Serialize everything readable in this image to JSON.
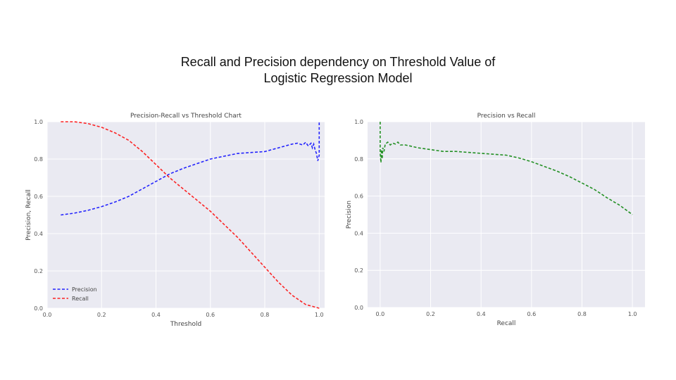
{
  "slide": {
    "title_line1": "Recall and Precision dependency on Threshold Value of",
    "title_line2": "Logistic Regression Model"
  },
  "chart_data": [
    {
      "type": "line",
      "title": "Precision-Recall vs Threshold Chart",
      "xlabel": "Threshold",
      "ylabel": "Precision, Recall",
      "xlim": [
        0.0,
        1.02
      ],
      "ylim": [
        0.0,
        1.0
      ],
      "xticks": [
        "0.0",
        "0.2",
        "0.4",
        "0.6",
        "0.8",
        "1.0"
      ],
      "yticks": [
        "0.0",
        "0.2",
        "0.4",
        "0.6",
        "0.8",
        "1.0"
      ],
      "grid": true,
      "legend": "lower-left",
      "series": [
        {
          "name": "Precision",
          "color": "#0000ff",
          "style": "dashed",
          "x": [
            0.05,
            0.1,
            0.15,
            0.2,
            0.25,
            0.3,
            0.35,
            0.4,
            0.45,
            0.5,
            0.55,
            0.6,
            0.65,
            0.7,
            0.75,
            0.8,
            0.85,
            0.9,
            0.92,
            0.94,
            0.95,
            0.96,
            0.97,
            0.975,
            0.98,
            0.985,
            0.99,
            0.995,
            1.0,
            1.0
          ],
          "y": [
            0.5,
            0.51,
            0.525,
            0.545,
            0.57,
            0.6,
            0.64,
            0.68,
            0.72,
            0.75,
            0.775,
            0.8,
            0.815,
            0.83,
            0.835,
            0.84,
            0.86,
            0.88,
            0.885,
            0.875,
            0.89,
            0.87,
            0.885,
            0.86,
            0.88,
            0.85,
            0.83,
            0.79,
            0.82,
            1.0
          ]
        },
        {
          "name": "Recall",
          "color": "#ff0000",
          "style": "dashed",
          "x": [
            0.05,
            0.1,
            0.15,
            0.2,
            0.25,
            0.3,
            0.35,
            0.4,
            0.45,
            0.5,
            0.55,
            0.6,
            0.65,
            0.7,
            0.75,
            0.8,
            0.85,
            0.9,
            0.95,
            1.0
          ],
          "y": [
            1.0,
            1.0,
            0.99,
            0.97,
            0.94,
            0.9,
            0.84,
            0.77,
            0.7,
            0.64,
            0.58,
            0.52,
            0.45,
            0.38,
            0.3,
            0.22,
            0.14,
            0.07,
            0.02,
            0.0
          ]
        }
      ]
    },
    {
      "type": "line",
      "title": "Precision vs Recall",
      "xlabel": "Recall",
      "ylabel": "Precision",
      "xlim": [
        -0.05,
        1.05
      ],
      "ylim": [
        0.0,
        1.0
      ],
      "xticks": [
        "0.0",
        "0.2",
        "0.4",
        "0.6",
        "0.8",
        "1.0"
      ],
      "yticks": [
        "0.0",
        "0.2",
        "0.4",
        "0.6",
        "0.8",
        "1.0"
      ],
      "grid": true,
      "legend": "none",
      "series": [
        {
          "color": "#008000",
          "style": "dashed",
          "x": [
            0.0,
            0.0,
            0.003,
            0.005,
            0.008,
            0.01,
            0.015,
            0.02,
            0.03,
            0.04,
            0.05,
            0.06,
            0.07,
            0.08,
            0.1,
            0.15,
            0.2,
            0.25,
            0.3,
            0.35,
            0.4,
            0.45,
            0.5,
            0.55,
            0.6,
            0.65,
            0.7,
            0.75,
            0.8,
            0.85,
            0.9,
            0.95,
            1.0
          ],
          "y": [
            1.0,
            0.83,
            0.78,
            0.85,
            0.8,
            0.86,
            0.84,
            0.88,
            0.89,
            0.875,
            0.885,
            0.88,
            0.89,
            0.875,
            0.875,
            0.86,
            0.85,
            0.84,
            0.84,
            0.835,
            0.83,
            0.825,
            0.82,
            0.805,
            0.785,
            0.76,
            0.735,
            0.705,
            0.67,
            0.635,
            0.59,
            0.55,
            0.5
          ]
        }
      ]
    }
  ]
}
